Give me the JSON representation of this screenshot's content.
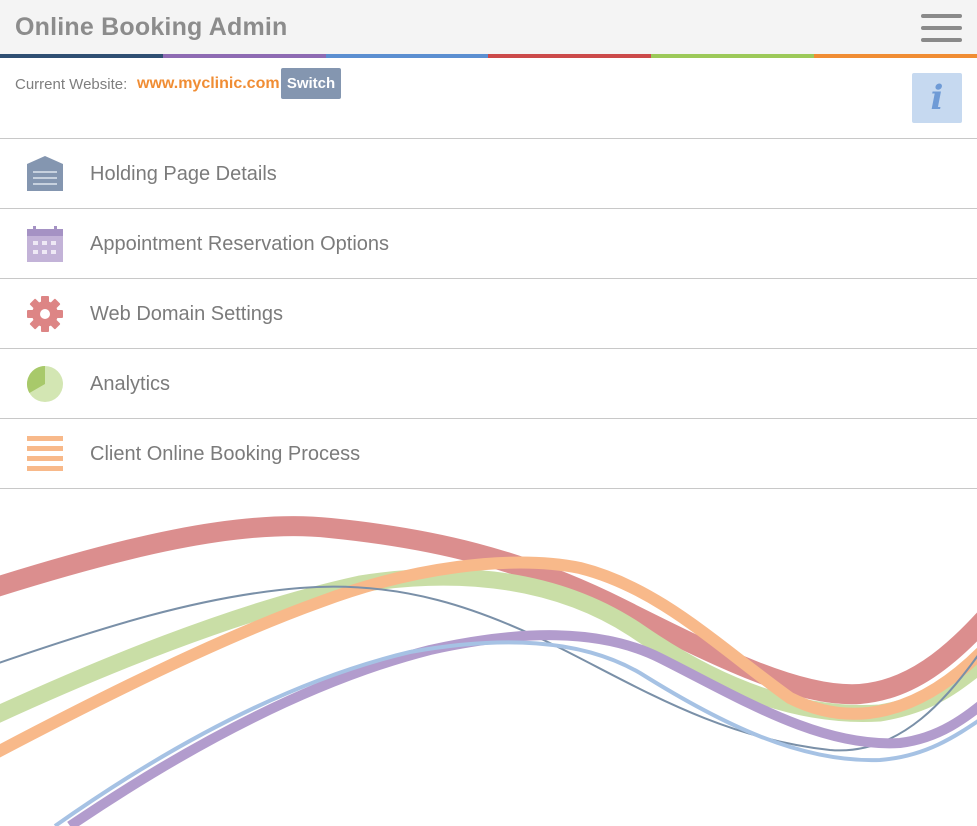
{
  "header": {
    "title": "Online Booking Admin",
    "menu_icon": "hamburger-menu-icon",
    "stripe_colors": [
      "#2f4f72",
      "#8e6bb3",
      "#5b8fd1",
      "#cc4a4a",
      "#9cc959",
      "#f08d34"
    ]
  },
  "website": {
    "label": "Current Website:",
    "url": "www.myclinic.com",
    "switch_label": "Switch",
    "url_color": "#f08d34"
  },
  "info_button": {
    "label": "i",
    "icon": "info-icon"
  },
  "menu": {
    "items": [
      {
        "label": "Holding Page Details",
        "icon": "holding-page-icon",
        "color": "#8496b0"
      },
      {
        "label": "Appointment Reservation Options",
        "icon": "calendar-icon",
        "color": "#b6a3cf"
      },
      {
        "label": "Web Domain Settings",
        "icon": "gear-icon",
        "color": "#dd8585"
      },
      {
        "label": "Analytics",
        "icon": "pie-chart-icon",
        "color": "#a8c96a"
      },
      {
        "label": "Client Online Booking Process",
        "icon": "list-icon",
        "color": "#f8b98a"
      }
    ]
  },
  "decoration": {
    "wave_colors": [
      "#d98888",
      "#c9dea6",
      "#f8b98a",
      "#7a90a8",
      "#b29ccd",
      "#a6c2e4"
    ]
  }
}
